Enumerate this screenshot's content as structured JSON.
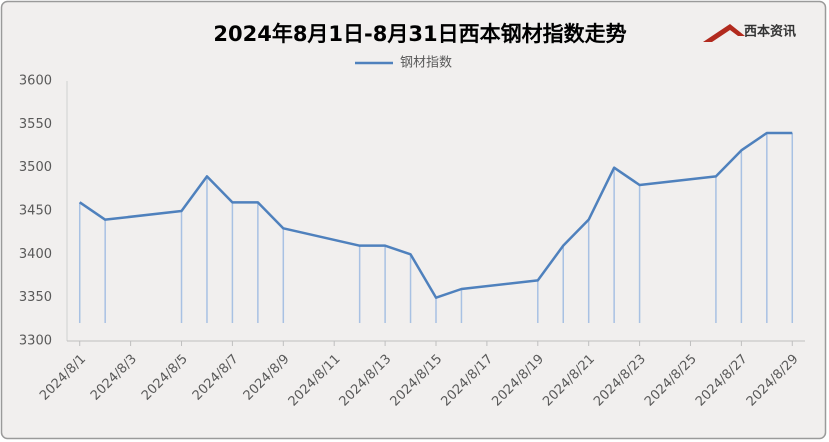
{
  "chart_data": {
    "type": "line",
    "title": "2024年8月1日-8月31日西本钢材指数走势",
    "logo": "西本资讯",
    "x": [
      1,
      2,
      5,
      6,
      7,
      8,
      9,
      12,
      13,
      14,
      15,
      16,
      19,
      20,
      21,
      22,
      23,
      26,
      27,
      28,
      29
    ],
    "series": [
      {
        "name": "钢材指数",
        "color": "#4f81bd",
        "values": [
          3460,
          3440,
          3450,
          3490,
          3460,
          3460,
          3430,
          3410,
          3410,
          3400,
          3350,
          3360,
          3370,
          3410,
          3440,
          3500,
          3480,
          3490,
          3520,
          3540,
          3540
        ]
      }
    ],
    "xlim": [
      0.5,
      29.5
    ],
    "xticks": [
      {
        "value": 1,
        "label": "2024/8/1"
      },
      {
        "value": 3,
        "label": "2024/8/3"
      },
      {
        "value": 5,
        "label": "2024/8/5"
      },
      {
        "value": 7,
        "label": "2024/8/7"
      },
      {
        "value": 9,
        "label": "2024/8/9"
      },
      {
        "value": 11,
        "label": "2024/8/11"
      },
      {
        "value": 13,
        "label": "2024/8/13"
      },
      {
        "value": 15,
        "label": "2024/8/15"
      },
      {
        "value": 17,
        "label": "2024/8/17"
      },
      {
        "value": 19,
        "label": "2024/8/19"
      },
      {
        "value": 21,
        "label": "2024/8/21"
      },
      {
        "value": 23,
        "label": "2024/8/23"
      },
      {
        "value": 25,
        "label": "2024/8/25"
      },
      {
        "value": 27,
        "label": "2024/8/27"
      },
      {
        "value": 29,
        "label": "2024/8/29"
      }
    ],
    "ylim": [
      3300,
      3600
    ],
    "yticks": [
      3300,
      3350,
      3400,
      3450,
      3500,
      3550,
      3600
    ],
    "drop_lines": true,
    "drop_color": "#a8c1e3",
    "legend": "top"
  }
}
